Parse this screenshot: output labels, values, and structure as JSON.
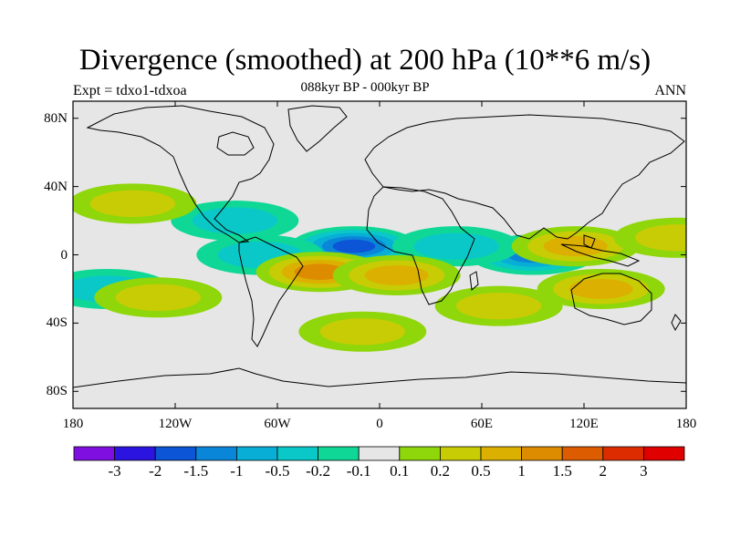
{
  "title": "Divergence (smoothed) at 200 hPa (10**6 m/s)",
  "expt_label": "Expt = tdxo1-tdxoa",
  "period_label": "088kyr BP - 000kyr BP",
  "season_label": "ANN",
  "lat_ticks": [
    {
      "label": "80N",
      "lat": 80
    },
    {
      "label": "40N",
      "lat": 40
    },
    {
      "label": "0",
      "lat": 0
    },
    {
      "label": "40S",
      "lat": -40
    },
    {
      "label": "80S",
      "lat": -80
    }
  ],
  "lon_ticks": [
    {
      "label": "180",
      "lon": -180
    },
    {
      "label": "120W",
      "lon": -120
    },
    {
      "label": "60W",
      "lon": -60
    },
    {
      "label": "0",
      "lon": 0
    },
    {
      "label": "60E",
      "lon": 60
    },
    {
      "label": "120E",
      "lon": 120
    },
    {
      "label": "180",
      "lon": 180
    }
  ],
  "colorbar": {
    "colors": [
      "#7f0fe0",
      "#2b14e0",
      "#0b55d6",
      "#0a86d8",
      "#08aed6",
      "#0ac8c8",
      "#0fd896",
      "#e6e6e6",
      "#8fd60a",
      "#c8cc05",
      "#dcb000",
      "#dd8c00",
      "#dd5c00",
      "#dc2c00",
      "#e00000"
    ],
    "labels": [
      "-3",
      "-2",
      "-1.5",
      "-1",
      "-0.5",
      "-0.2",
      "-0.1",
      "0.1",
      "0.2",
      "0.5",
      "1",
      "1.5",
      "2",
      "3"
    ]
  },
  "chart_data": {
    "type": "heatmap",
    "title": "Divergence (smoothed) at 200 hPa (10**6 m/s)",
    "subtitle": "088kyr BP - 000kyr BP",
    "xlim": [
      -180,
      180
    ],
    "ylim": [
      -90,
      90
    ],
    "levels": [
      -3,
      -2,
      -1.5,
      -1,
      -0.5,
      -0.2,
      -0.1,
      0.1,
      0.2,
      0.5,
      1,
      1.5,
      2,
      3
    ],
    "features": [
      {
        "lon": -15,
        "lat": 5,
        "value": -2.0
      },
      {
        "lon": 90,
        "lat": 0,
        "value": -1.5
      },
      {
        "lon": -70,
        "lat": 0,
        "value": -0.7
      },
      {
        "lon": 45,
        "lat": 5,
        "value": -0.6
      },
      {
        "lon": -160,
        "lat": -20,
        "value": -0.6
      },
      {
        "lon": -85,
        "lat": 20,
        "value": -0.7
      },
      {
        "lon": -35,
        "lat": -10,
        "value": 1.5
      },
      {
        "lon": 10,
        "lat": -12,
        "value": 1.2
      },
      {
        "lon": 130,
        "lat": -20,
        "value": 0.8
      },
      {
        "lon": 115,
        "lat": 5,
        "value": 1.0
      },
      {
        "lon": -130,
        "lat": -25,
        "value": 0.7
      },
      {
        "lon": -145,
        "lat": 30,
        "value": 0.5
      },
      {
        "lon": 175,
        "lat": 10,
        "value": 0.6
      },
      {
        "lon": -10,
        "lat": -45,
        "value": 0.5
      },
      {
        "lon": 70,
        "lat": -30,
        "value": 0.4
      }
    ]
  }
}
